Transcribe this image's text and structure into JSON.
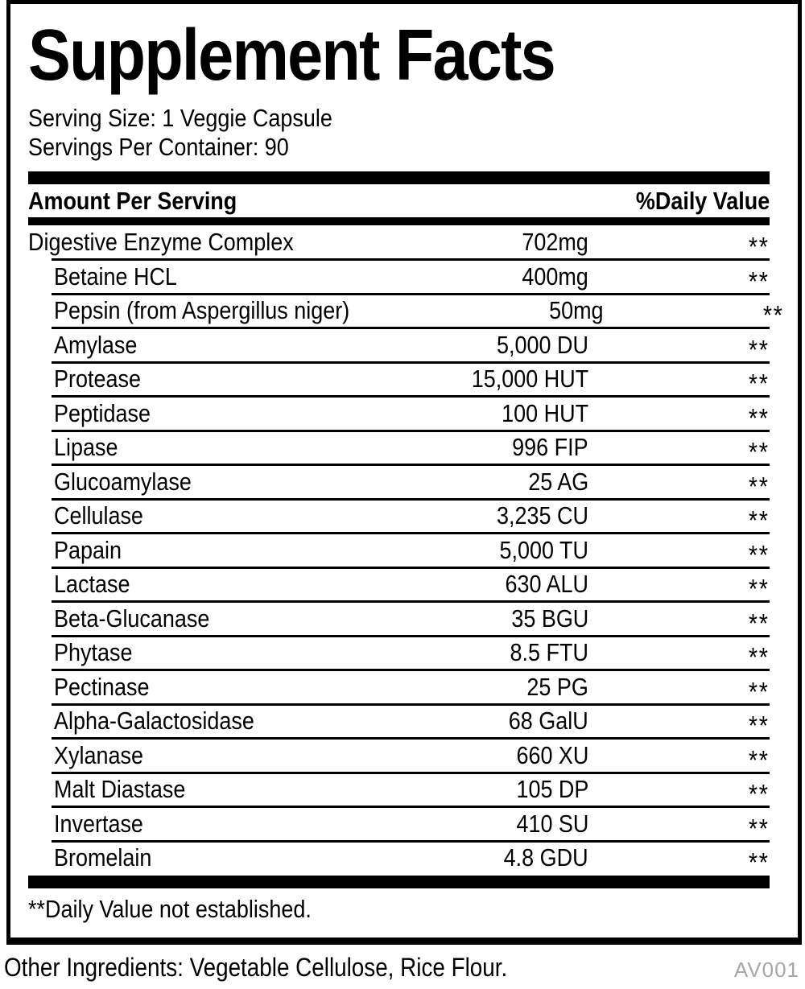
{
  "title": "Supplement Facts",
  "serving": {
    "size_label": "Serving Size: 1 Veggie Capsule",
    "per_container_label": "Servings Per Container: 90"
  },
  "table": {
    "header": {
      "amount": "Amount Per Serving",
      "dv": "%Daily Value"
    },
    "rows": [
      {
        "name": "Digestive Enzyme Complex",
        "amount": "702mg",
        "dv": "**",
        "indent": false
      },
      {
        "name": "Betaine HCL",
        "amount": "400mg",
        "dv": "**",
        "indent": true
      },
      {
        "name": "Pepsin (from Aspergillus niger)",
        "amount": "50mg",
        "dv": "**",
        "indent": true
      },
      {
        "name": "Amylase",
        "amount": "5,000 DU",
        "dv": "**",
        "indent": true
      },
      {
        "name": "Protease",
        "amount": "15,000 HUT",
        "dv": "**",
        "indent": true
      },
      {
        "name": "Peptidase",
        "amount": "100 HUT",
        "dv": "**",
        "indent": true
      },
      {
        "name": "Lipase",
        "amount": "996 FIP",
        "dv": "**",
        "indent": true
      },
      {
        "name": "Glucoamylase",
        "amount": "25 AG",
        "dv": "**",
        "indent": true
      },
      {
        "name": "Cellulase",
        "amount": "3,235 CU",
        "dv": "**",
        "indent": true
      },
      {
        "name": "Papain",
        "amount": "5,000 TU",
        "dv": "**",
        "indent": true
      },
      {
        "name": "Lactase",
        "amount": "630 ALU",
        "dv": "**",
        "indent": true
      },
      {
        "name": "Beta-Glucanase",
        "amount": "35 BGU",
        "dv": "**",
        "indent": true
      },
      {
        "name": "Phytase",
        "amount": "8.5 FTU",
        "dv": "**",
        "indent": true
      },
      {
        "name": "Pectinase",
        "amount": "25 PG",
        "dv": "**",
        "indent": true
      },
      {
        "name": "Alpha-Galactosidase",
        "amount": "68 GalU",
        "dv": "**",
        "indent": true
      },
      {
        "name": "Xylanase",
        "amount": "660 XU",
        "dv": "**",
        "indent": true
      },
      {
        "name": "Malt Diastase",
        "amount": "105 DP",
        "dv": "**",
        "indent": true
      },
      {
        "name": "Invertase",
        "amount": "410 SU",
        "dv": "**",
        "indent": true
      },
      {
        "name": "Bromelain",
        "amount": "4.8 GDU",
        "dv": "**",
        "indent": true
      }
    ],
    "footnote": "**Daily Value not established."
  },
  "footer": {
    "other_ingredients": "Other Ingredients: Vegetable Cellulose, Rice Flour.",
    "code": "AV001"
  },
  "colors": {
    "ink": "#000000",
    "code_gray": "#a7a7a7"
  }
}
